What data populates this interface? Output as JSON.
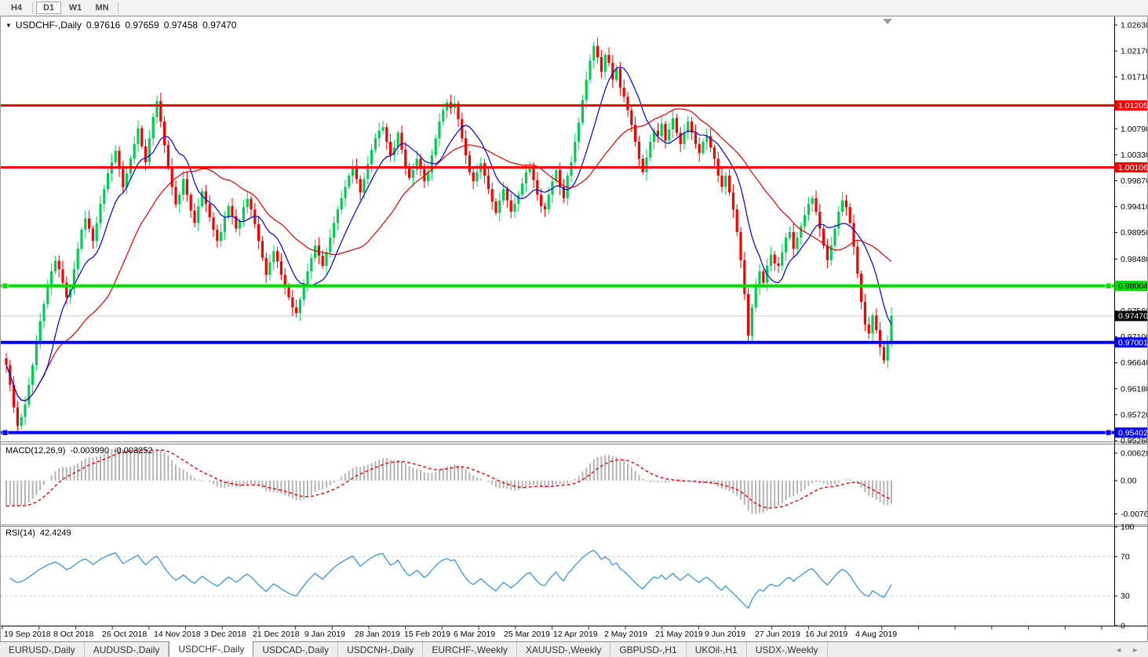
{
  "toolbar": {
    "timeframes": [
      {
        "label": "H4",
        "active": false
      },
      {
        "label": "D1",
        "active": true
      },
      {
        "label": "W1",
        "active": false
      },
      {
        "label": "MN",
        "active": false
      }
    ]
  },
  "chart": {
    "title": {
      "symbol": "USDCHF-,Daily",
      "open": "0.97616",
      "high": "0.97659",
      "low": "0.97458",
      "close": "0.97470"
    },
    "first_open": 0.9672,
    "closes": [
      0.966,
      0.9625,
      0.9585,
      0.9552,
      0.9568,
      0.959,
      0.9625,
      0.966,
      0.97,
      0.9738,
      0.9768,
      0.98,
      0.9826,
      0.9845,
      0.983,
      0.9806,
      0.978,
      0.9795,
      0.983,
      0.9866,
      0.99,
      0.992,
      0.9902,
      0.988,
      0.9912,
      0.9946,
      0.9972,
      1.0,
      1.002,
      1.004,
      1.0008,
      0.9975,
      1.0,
      1.0026,
      1.0052,
      1.008,
      1.0048,
      1.002,
      1.0062,
      1.01,
      1.0128,
      1.0092,
      1.005,
      1.0012,
      0.9976,
      0.9945,
      0.9962,
      0.999,
      0.9962,
      0.9934,
      0.9912,
      0.9942,
      0.9968,
      0.9946,
      0.9922,
      0.99,
      0.988,
      0.9896,
      0.9922,
      0.9942,
      0.9924,
      0.9902,
      0.9916,
      0.994,
      0.9955,
      0.9936,
      0.991,
      0.988,
      0.985,
      0.982,
      0.9842,
      0.9862,
      0.9844,
      0.982,
      0.98,
      0.978,
      0.9762,
      0.9752,
      0.9776,
      0.98,
      0.9826,
      0.985,
      0.9872,
      0.9854,
      0.9836,
      0.986,
      0.9886,
      0.9912,
      0.9936,
      0.9956,
      0.9976,
      0.9996,
      1.0012,
      0.999,
      0.9966,
      0.999,
      1.0016,
      1.0042,
      1.0062,
      1.0076,
      1.0082,
      1.0056,
      1.0032,
      1.0046,
      1.0072,
      1.0042,
      1.0012,
      0.9992,
      1.0006,
      1.0026,
      1.0008,
      0.9986,
      1.0002,
      1.0032,
      1.0062,
      1.0092,
      1.0112,
      1.0126,
      1.0116,
      1.0124,
      1.0096,
      1.0062,
      1.0032,
      1.0002,
      0.9986,
      1.0002,
      1.0018,
      0.9996,
      0.9972,
      0.995,
      0.993,
      0.9952,
      0.9972,
      0.9952,
      0.9932,
      0.9946,
      0.9962,
      0.9982,
      1.0002,
      1.0012,
      0.9988,
      0.9962,
      0.9942,
      0.9936,
      0.9962,
      0.9986,
      1.0006,
      0.9976,
      0.9956,
      0.9996,
      1.002,
      1.0056,
      1.009,
      1.013,
      1.0166,
      1.02,
      1.0226,
      1.0206,
      1.018,
      1.021,
      1.0196,
      1.0166,
      1.0186,
      1.0152,
      1.0136,
      1.0112,
      1.0086,
      1.0056,
      1.0026,
      1.0002,
      1.0028,
      1.0056,
      1.0076,
      1.0066,
      1.0088,
      1.0058,
      1.0078,
      1.0098,
      1.0072,
      1.0052,
      1.0072,
      1.0092,
      1.0072,
      1.0052,
      1.0036,
      1.0056,
      1.0066,
      1.0046,
      1.0026,
      0.9996,
      0.9976,
      0.9996,
      0.9966,
      0.9936,
      0.9896,
      0.9846,
      0.9786,
      0.9712,
      0.9762,
      0.98,
      0.9826,
      0.9806,
      0.9836,
      0.9856,
      0.984,
      0.9836,
      0.986,
      0.9886,
      0.9896,
      0.9866,
      0.9886,
      0.9906,
      0.9926,
      0.9946,
      0.9956,
      0.9932,
      0.9902,
      0.9872,
      0.9846,
      0.9872,
      0.9902,
      0.9932,
      0.9952,
      0.994,
      0.9912,
      0.987,
      0.9822,
      0.9772,
      0.9732,
      0.9716,
      0.9748,
      0.9722,
      0.9692,
      0.9668,
      0.9702,
      0.9747
    ],
    "price_axis": {
      "ticks": [
        {
          "v": 1.0263,
          "t": "1.02630"
        },
        {
          "v": 1.0217,
          "t": "1.02170"
        },
        {
          "v": 1.0171,
          "t": "1.01710"
        },
        {
          "v": 1.0079,
          "t": "1.00790"
        },
        {
          "v": 1.0033,
          "t": "1.00330"
        },
        {
          "v": 0.9987,
          "t": "0.99870"
        },
        {
          "v": 0.9941,
          "t": "0.99410"
        },
        {
          "v": 0.9895,
          "t": "0.98950"
        },
        {
          "v": 0.9848,
          "t": "0.98480"
        },
        {
          "v": 0.9756,
          "t": "0.97560"
        },
        {
          "v": 0.971,
          "t": "0.97100"
        },
        {
          "v": 0.9664,
          "t": "0.96640"
        },
        {
          "v": 0.9618,
          "t": "0.96180"
        },
        {
          "v": 0.9572,
          "t": "0.95720"
        },
        {
          "v": 0.9526,
          "t": "0.95260"
        }
      ]
    },
    "levels": [
      {
        "price": 1.01205,
        "label": "1.01205",
        "color": "#ff0000",
        "width": 3,
        "tag_bg": "#ff0000",
        "tag_fg": "#ffffff",
        "handles": false
      },
      {
        "price": 1.00106,
        "label": "1.00106",
        "color": "#ff0000",
        "width": 3,
        "tag_bg": "#ff0000",
        "tag_fg": "#ffffff",
        "handles": false
      },
      {
        "price": 0.98004,
        "label": "0.98004",
        "color": "#00dd00",
        "width": 4,
        "tag_bg": "#00dd00",
        "tag_fg": "#000000",
        "handles": true
      },
      {
        "price": 0.97001,
        "label": "0.97001",
        "color": "#0000ff",
        "width": 4,
        "tag_bg": "#0000ff",
        "tag_fg": "#ffffff",
        "handles": false
      },
      {
        "price": 0.95402,
        "label": "0.95402",
        "color": "#0000ff",
        "width": 4,
        "tag_bg": "#0000ff",
        "tag_fg": "#ffffff",
        "handles": true
      }
    ],
    "current_price": {
      "value": "0.97470",
      "price": 0.9747,
      "line_color": "#c4c4c4",
      "tag_bg": "#000000",
      "tag_fg": "#ffffff"
    }
  },
  "macd": {
    "label": "MACD(12,26,9)",
    "main_value": "-0.003990",
    "signal_value": "-0.003252",
    "ticks": [
      {
        "v": 0.006286,
        "t": "0.006286"
      },
      {
        "v": 0,
        "t": "0.00"
      },
      {
        "v": -0.00762,
        "t": "-0.00762"
      }
    ],
    "hist_color": "#b4b4b4",
    "signal_color": "#f00000"
  },
  "rsi": {
    "label": "RSI(14)",
    "value": "42.4249",
    "ticks": [
      {
        "v": 100,
        "t": "100"
      },
      {
        "v": 70,
        "t": "70"
      },
      {
        "v": 30,
        "t": "30"
      },
      {
        "v": 0,
        "t": "0"
      }
    ],
    "levels": [
      70,
      30
    ],
    "line_color": "#3a96dd",
    "level_color": "#c8c8c8"
  },
  "date_axis": {
    "labels": [
      [
        "19 Sep 2018",
        5
      ],
      [
        "8 Oct 2018",
        68
      ],
      [
        "26 Oct 2018",
        130
      ],
      [
        "14 Nov 2018",
        196
      ],
      [
        "3 Dec 2018",
        260
      ],
      [
        "21 Dec 2018",
        322
      ],
      [
        "9 Jan 2019",
        388
      ],
      [
        "28 Jan 2019",
        452
      ],
      [
        "15 Feb 2019",
        515
      ],
      [
        "6 Mar 2019",
        578
      ],
      [
        "25 Mar 2019",
        642
      ],
      [
        "12 Apr 2019",
        705
      ],
      [
        "2 May 2019",
        770
      ],
      [
        "21 May 2019",
        835
      ],
      [
        "9 Jun 2019",
        898
      ],
      [
        "27 Jun 2019",
        962
      ],
      [
        "16 Jul 2019",
        1026
      ],
      [
        "4 Aug 2019",
        1090
      ]
    ]
  },
  "tabs": {
    "items": [
      {
        "label": "EURUSD-,Daily",
        "active": false
      },
      {
        "label": "AUDUSD-,Daily",
        "active": false
      },
      {
        "label": "USDCHF-,Daily",
        "active": true
      },
      {
        "label": "USDCAD-,Daily",
        "active": false
      },
      {
        "label": "USDCNH-,Daily",
        "active": false
      },
      {
        "label": "EURCHF-,Weekly",
        "active": false
      },
      {
        "label": "XAUUSD-,Weekly",
        "active": false
      },
      {
        "label": "GBPUSD-,H1",
        "active": false
      },
      {
        "label": "UKOil-,H1",
        "active": false
      },
      {
        "label": "USDX-,Weekly",
        "active": false
      }
    ],
    "scroll_left": "◄",
    "scroll_right": "►"
  },
  "colors": {
    "candle_up": "#00cd55",
    "candle_down": "#f40000",
    "ma_fast": "#0000cd",
    "ma_slow": "#e00000",
    "axis_text": "#000000",
    "border": "#6f6f6f",
    "marker_gray": "#9a9a9a"
  }
}
